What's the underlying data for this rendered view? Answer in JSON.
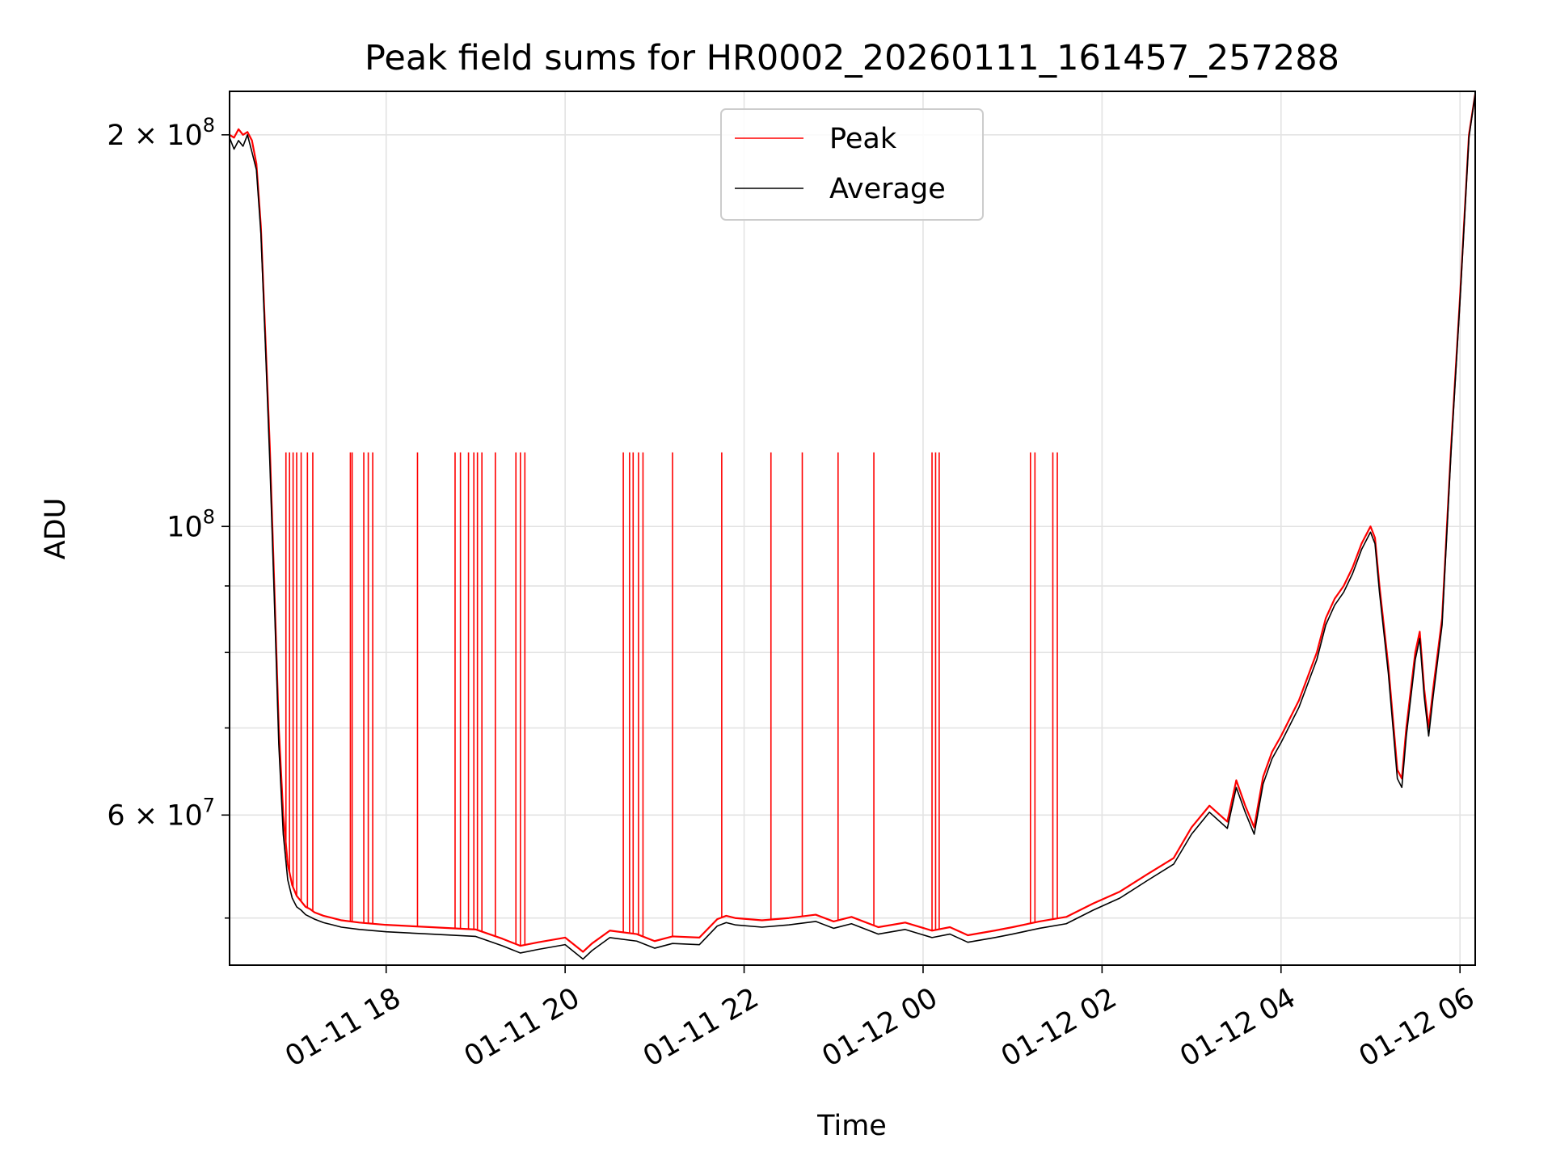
{
  "chart_data": {
    "type": "line",
    "title": "Peak field sums for HR0002_20260111_161457_257288",
    "xlabel": "Time",
    "ylabel": "ADU",
    "yscale": "log",
    "grid": true,
    "legend_position": "upper-center",
    "xlim_hours": [
      16.25,
      30.17
    ],
    "ylim": [
      46000000,
      216000000
    ],
    "x_ticks": [
      {
        "hour": 18,
        "label": "01-11 18"
      },
      {
        "hour": 20,
        "label": "01-11 20"
      },
      {
        "hour": 22,
        "label": "01-11 22"
      },
      {
        "hour": 24,
        "label": "01-12 00"
      },
      {
        "hour": 26,
        "label": "01-12 02"
      },
      {
        "hour": 28,
        "label": "01-12 04"
      },
      {
        "hour": 30,
        "label": "01-12 06"
      }
    ],
    "y_major_ticks": [
      {
        "value": 60000000,
        "mantissa": "6",
        "exponent": "7"
      },
      {
        "value": 100000000,
        "mantissa": "",
        "exponent": "8"
      },
      {
        "value": 200000000,
        "mantissa": "2",
        "exponent": "8"
      }
    ],
    "y_minor_ticks": [
      50000000,
      70000000,
      80000000,
      90000000
    ],
    "series": [
      {
        "name": "Peak",
        "color": "#ff0000",
        "x_hours": [
          16.25,
          16.3,
          16.35,
          16.4,
          16.45,
          16.5,
          16.55,
          16.6,
          16.65,
          16.7,
          16.75,
          16.8,
          16.85,
          16.9,
          16.95,
          17.0,
          17.05,
          17.1,
          17.15,
          17.2,
          17.3,
          17.4,
          17.5,
          17.7,
          18.0,
          18.5,
          19.0,
          19.3,
          19.5,
          19.7,
          20.0,
          20.2,
          20.3,
          20.5,
          20.8,
          21.0,
          21.2,
          21.5,
          21.7,
          21.8,
          21.9,
          22.2,
          22.5,
          22.8,
          23.0,
          23.2,
          23.5,
          23.8,
          24.1,
          24.3,
          24.5,
          24.8,
          25.0,
          25.3,
          25.6,
          25.9,
          26.2,
          26.5,
          26.8,
          27.0,
          27.2,
          27.4,
          27.5,
          27.6,
          27.7,
          27.8,
          27.9,
          28.0,
          28.2,
          28.4,
          28.5,
          28.6,
          28.7,
          28.8,
          28.9,
          29.0,
          29.05,
          29.1,
          29.2,
          29.3,
          29.35,
          29.4,
          29.5,
          29.55,
          29.6,
          29.65,
          29.7,
          29.8,
          29.9,
          30.0,
          30.1,
          30.17
        ],
        "values": [
          200000000,
          199000000,
          202000000,
          200000000,
          201000000,
          198000000,
          190000000,
          170000000,
          140000000,
          115000000,
          90000000,
          70000000,
          60000000,
          55000000,
          53000000,
          52000000,
          51500000,
          51000000,
          50800000,
          50500000,
          50200000,
          50000000,
          49800000,
          49600000,
          49400000,
          49200000,
          49000000,
          48200000,
          47600000,
          47900000,
          48300000,
          47100000,
          47800000,
          48900000,
          48600000,
          48000000,
          48400000,
          48300000,
          49900000,
          50200000,
          50000000,
          49800000,
          50000000,
          50300000,
          49700000,
          50100000,
          49200000,
          49600000,
          48900000,
          49200000,
          48500000,
          48900000,
          49200000,
          49700000,
          50100000,
          51300000,
          52400000,
          54000000,
          55600000,
          58700000,
          61000000,
          59300000,
          63800000,
          61000000,
          58700000,
          64200000,
          67100000,
          69000000,
          73500000,
          80000000,
          85000000,
          88000000,
          90000000,
          93000000,
          97000000,
          100000000,
          98000000,
          90000000,
          78000000,
          65000000,
          64000000,
          70000000,
          80000000,
          83000000,
          75000000,
          70000000,
          75000000,
          85000000,
          115000000,
          150000000,
          200000000,
          215000000
        ]
      },
      {
        "name": "Average",
        "color": "#000000",
        "x_hours": [
          16.25,
          16.3,
          16.35,
          16.4,
          16.45,
          16.5,
          16.55,
          16.6,
          16.65,
          16.7,
          16.75,
          16.8,
          16.85,
          16.9,
          16.95,
          17.0,
          17.05,
          17.1,
          17.15,
          17.2,
          17.3,
          17.4,
          17.5,
          17.7,
          18.0,
          18.5,
          19.0,
          19.3,
          19.5,
          19.7,
          20.0,
          20.2,
          20.3,
          20.5,
          20.8,
          21.0,
          21.2,
          21.5,
          21.7,
          21.8,
          21.9,
          22.2,
          22.5,
          22.8,
          23.0,
          23.2,
          23.5,
          23.8,
          24.1,
          24.3,
          24.5,
          24.8,
          25.0,
          25.3,
          25.6,
          25.9,
          26.2,
          26.5,
          26.8,
          27.0,
          27.2,
          27.4,
          27.5,
          27.6,
          27.7,
          27.8,
          27.9,
          28.0,
          28.2,
          28.4,
          28.5,
          28.6,
          28.7,
          28.8,
          28.9,
          29.0,
          29.05,
          29.1,
          29.2,
          29.3,
          29.35,
          29.4,
          29.5,
          29.55,
          29.6,
          29.65,
          29.7,
          29.8,
          29.9,
          30.0,
          30.1,
          30.17
        ],
        "values": [
          199000000,
          195000000,
          198000000,
          196000000,
          200000000,
          194000000,
          188000000,
          168000000,
          138000000,
          112000000,
          88000000,
          68000000,
          58000000,
          53500000,
          51800000,
          51000000,
          50700000,
          50300000,
          50100000,
          49900000,
          49600000,
          49400000,
          49200000,
          49000000,
          48800000,
          48600000,
          48400000,
          47600000,
          47000000,
          47300000,
          47700000,
          46500000,
          47200000,
          48300000,
          48000000,
          47400000,
          47800000,
          47700000,
          49300000,
          49600000,
          49400000,
          49200000,
          49400000,
          49700000,
          49100000,
          49500000,
          48600000,
          49000000,
          48300000,
          48600000,
          47900000,
          48300000,
          48600000,
          49100000,
          49500000,
          50700000,
          51800000,
          53400000,
          55000000,
          58000000,
          60300000,
          58600000,
          63000000,
          60300000,
          58000000,
          63400000,
          66300000,
          68200000,
          72600000,
          79000000,
          84000000,
          87000000,
          89000000,
          92000000,
          96000000,
          99000000,
          97000000,
          89000000,
          77000000,
          64000000,
          63000000,
          69000000,
          79000000,
          82000000,
          74000000,
          69000000,
          74000000,
          84000000,
          114000000,
          149000000,
          199000000,
          215000000
        ]
      }
    ],
    "peak_spikes": {
      "series": "Peak",
      "note": "brief red spikes well above the average",
      "x_hours": [
        16.88,
        16.92,
        16.96,
        17.0,
        17.05,
        17.12,
        17.18,
        17.6,
        17.62,
        17.75,
        17.8,
        17.85,
        18.35,
        18.77,
        18.83,
        18.92,
        18.98,
        19.02,
        19.07,
        19.22,
        19.45,
        19.5,
        19.55,
        20.65,
        20.72,
        20.76,
        20.82,
        20.87,
        21.2,
        21.75,
        22.3,
        22.65,
        23.05,
        23.45,
        24.1,
        24.14,
        24.18,
        25.2,
        25.25,
        25.45,
        25.5
      ],
      "values": [
        114000000,
        114000000,
        114000000,
        114000000,
        114000000,
        114000000,
        114000000,
        114000000,
        114000000,
        114000000,
        114000000,
        114000000,
        114000000,
        114000000,
        114000000,
        114000000,
        114000000,
        114000000,
        114000000,
        114000000,
        114000000,
        114000000,
        114000000,
        114000000,
        114000000,
        114000000,
        114000000,
        114000000,
        114000000,
        114000000,
        114000000,
        114000000,
        114000000,
        114000000,
        114000000,
        114000000,
        114000000,
        114000000,
        114000000,
        114000000,
        114000000
      ]
    }
  }
}
